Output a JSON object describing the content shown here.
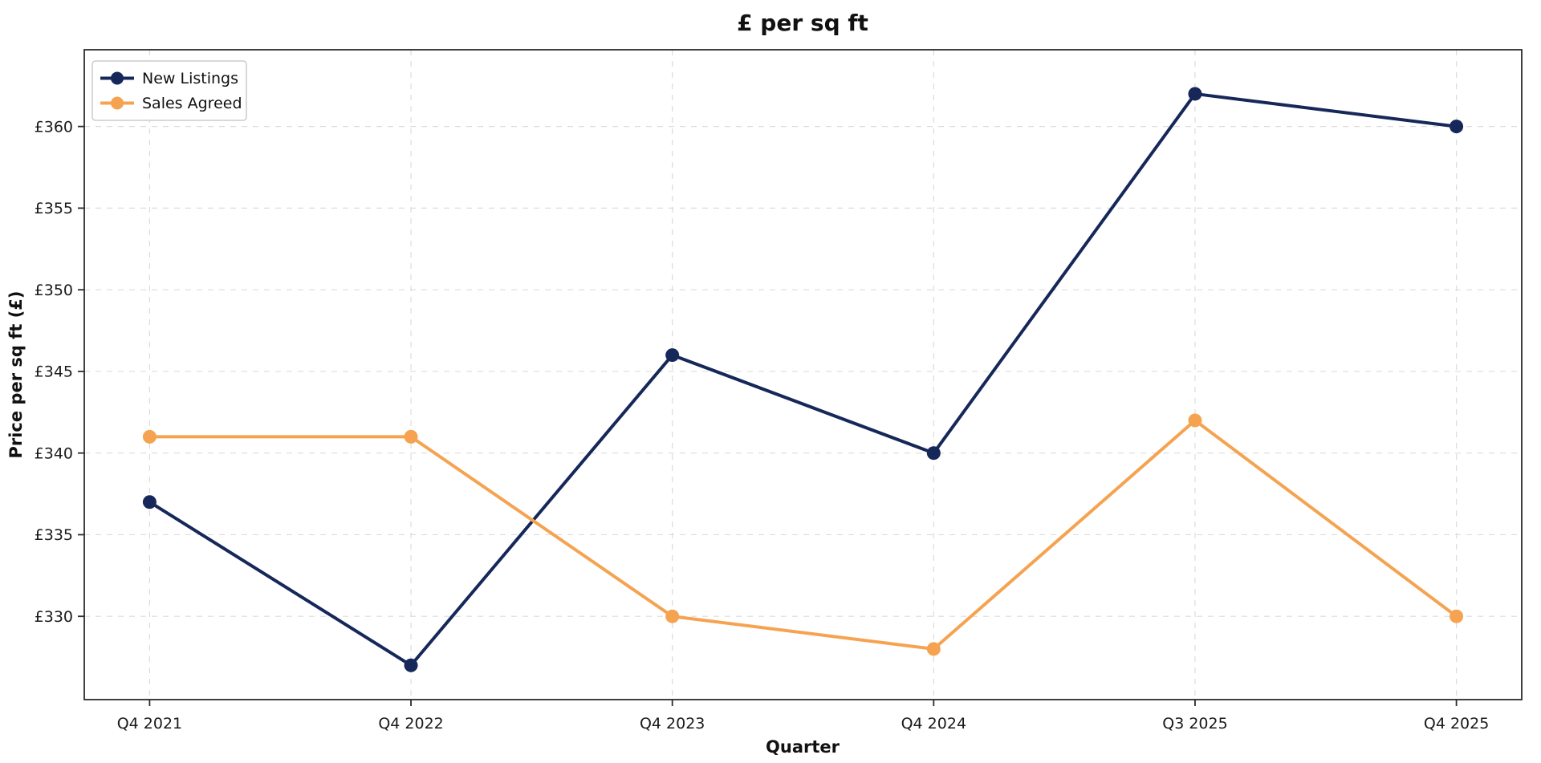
{
  "chart_data": {
    "type": "line",
    "title": "£ per sq ft",
    "xlabel": "Quarter",
    "ylabel": "Price per sq ft (£)",
    "categories": [
      "Q4 2021",
      "Q4 2022",
      "Q4 2023",
      "Q4 2024",
      "Q3 2025",
      "Q4 2025"
    ],
    "series": [
      {
        "name": "New Listings",
        "color": "#16285a",
        "values": [
          337,
          327,
          346,
          340,
          362,
          360
        ]
      },
      {
        "name": "Sales Agreed",
        "color": "#f5a351",
        "values": [
          341,
          341,
          330,
          328,
          342,
          330
        ]
      }
    ],
    "y_ticks": [
      330,
      335,
      340,
      345,
      350,
      355,
      360
    ],
    "y_tick_prefix": "£",
    "ylim": [
      324.9,
      364.7
    ],
    "grid": true,
    "legend_position": "upper-left",
    "colors": {
      "new_listings": "#16285a",
      "sales_agreed": "#f5a351",
      "grid": "#dcdcdc",
      "spine": "#2b2b2b"
    }
  }
}
